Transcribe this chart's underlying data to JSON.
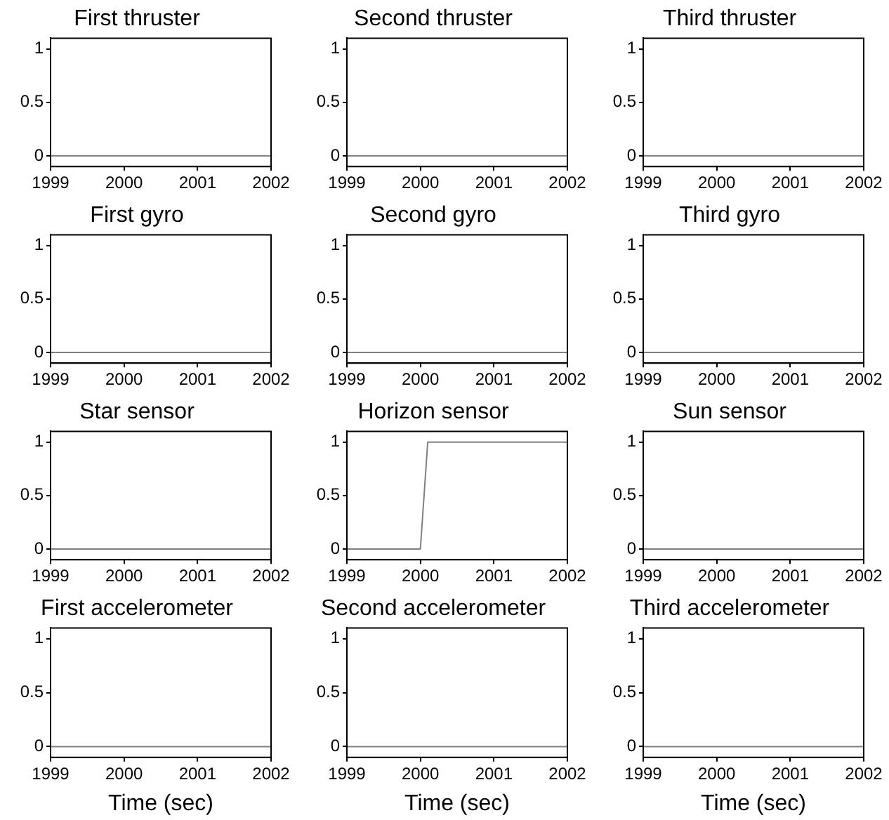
{
  "chart_data": [
    {
      "type": "line",
      "title": "First thruster",
      "x": [
        1999,
        2002
      ],
      "values": [
        0,
        0
      ],
      "color": "#808080",
      "xlim": [
        1999,
        2002
      ],
      "ylim": [
        -0.1,
        1.1
      ],
      "xticks": [
        1999,
        2000,
        2001,
        2002
      ],
      "yticks": [
        0,
        0.5,
        1
      ]
    },
    {
      "type": "line",
      "title": "Second thruster",
      "x": [
        1999,
        2002
      ],
      "values": [
        0,
        0
      ],
      "color": "#808080",
      "xlim": [
        1999,
        2002
      ],
      "ylim": [
        -0.1,
        1.1
      ],
      "xticks": [
        1999,
        2000,
        2001,
        2002
      ],
      "yticks": [
        0,
        0.5,
        1
      ]
    },
    {
      "type": "line",
      "title": "Third thruster",
      "x": [
        1999,
        2002
      ],
      "values": [
        0,
        0
      ],
      "color": "#808080",
      "xlim": [
        1999,
        2002
      ],
      "ylim": [
        -0.1,
        1.1
      ],
      "xticks": [
        1999,
        2000,
        2001,
        2002
      ],
      "yticks": [
        0,
        0.5,
        1
      ]
    },
    {
      "type": "line",
      "title": "First gyro",
      "x": [
        1999,
        2002
      ],
      "values": [
        0,
        0
      ],
      "color": "#808080",
      "xlim": [
        1999,
        2002
      ],
      "ylim": [
        -0.1,
        1.1
      ],
      "xticks": [
        1999,
        2000,
        2001,
        2002
      ],
      "yticks": [
        0,
        0.5,
        1
      ]
    },
    {
      "type": "line",
      "title": "Second gyro",
      "x": [
        1999,
        2002
      ],
      "values": [
        0,
        0
      ],
      "color": "#808080",
      "xlim": [
        1999,
        2002
      ],
      "ylim": [
        -0.1,
        1.1
      ],
      "xticks": [
        1999,
        2000,
        2001,
        2002
      ],
      "yticks": [
        0,
        0.5,
        1
      ]
    },
    {
      "type": "line",
      "title": "Third gyro",
      "x": [
        1999,
        2002
      ],
      "values": [
        0,
        0
      ],
      "color": "#808080",
      "xlim": [
        1999,
        2002
      ],
      "ylim": [
        -0.1,
        1.1
      ],
      "xticks": [
        1999,
        2000,
        2001,
        2002
      ],
      "yticks": [
        0,
        0.5,
        1
      ]
    },
    {
      "type": "line",
      "title": "Star sensor",
      "x": [
        1999,
        2002
      ],
      "values": [
        0,
        0
      ],
      "color": "#808080",
      "xlim": [
        1999,
        2002
      ],
      "ylim": [
        -0.1,
        1.1
      ],
      "xticks": [
        1999,
        2000,
        2001,
        2002
      ],
      "yticks": [
        0,
        0.5,
        1
      ]
    },
    {
      "type": "line",
      "title": "Horizon sensor",
      "x": [
        1999,
        2000,
        2000.1,
        2002
      ],
      "values": [
        0,
        0,
        1,
        1
      ],
      "color": "#808080",
      "xlim": [
        1999,
        2002
      ],
      "ylim": [
        -0.1,
        1.1
      ],
      "xticks": [
        1999,
        2000,
        2001,
        2002
      ],
      "yticks": [
        0,
        0.5,
        1
      ]
    },
    {
      "type": "line",
      "title": "Sun sensor",
      "x": [
        1999,
        2002
      ],
      "values": [
        0,
        0
      ],
      "color": "#808080",
      "xlim": [
        1999,
        2002
      ],
      "ylim": [
        -0.1,
        1.1
      ],
      "xticks": [
        1999,
        2000,
        2001,
        2002
      ],
      "yticks": [
        0,
        0.5,
        1
      ]
    },
    {
      "type": "line",
      "title": "First accelerometer",
      "xlabel": "Time (sec)",
      "x": [
        1999,
        2002
      ],
      "values": [
        0,
        0
      ],
      "color": "#808080",
      "xlim": [
        1999,
        2002
      ],
      "ylim": [
        -0.1,
        1.1
      ],
      "xticks": [
        1999,
        2000,
        2001,
        2002
      ],
      "yticks": [
        0,
        0.5,
        1
      ]
    },
    {
      "type": "line",
      "title": "Second accelerometer",
      "xlabel": "Time (sec)",
      "x": [
        1999,
        2002
      ],
      "values": [
        0,
        0
      ],
      "color": "#808080",
      "xlim": [
        1999,
        2002
      ],
      "ylim": [
        -0.1,
        1.1
      ],
      "xticks": [
        1999,
        2000,
        2001,
        2002
      ],
      "yticks": [
        0,
        0.5,
        1
      ]
    },
    {
      "type": "line",
      "title": "Third accelerometer",
      "xlabel": "Time (sec)",
      "x": [
        1999,
        2002
      ],
      "values": [
        0,
        0
      ],
      "color": "#808080",
      "xlim": [
        1999,
        2002
      ],
      "ylim": [
        -0.1,
        1.1
      ],
      "xticks": [
        1999,
        2000,
        2001,
        2002
      ],
      "yticks": [
        0,
        0.5,
        1
      ]
    }
  ]
}
